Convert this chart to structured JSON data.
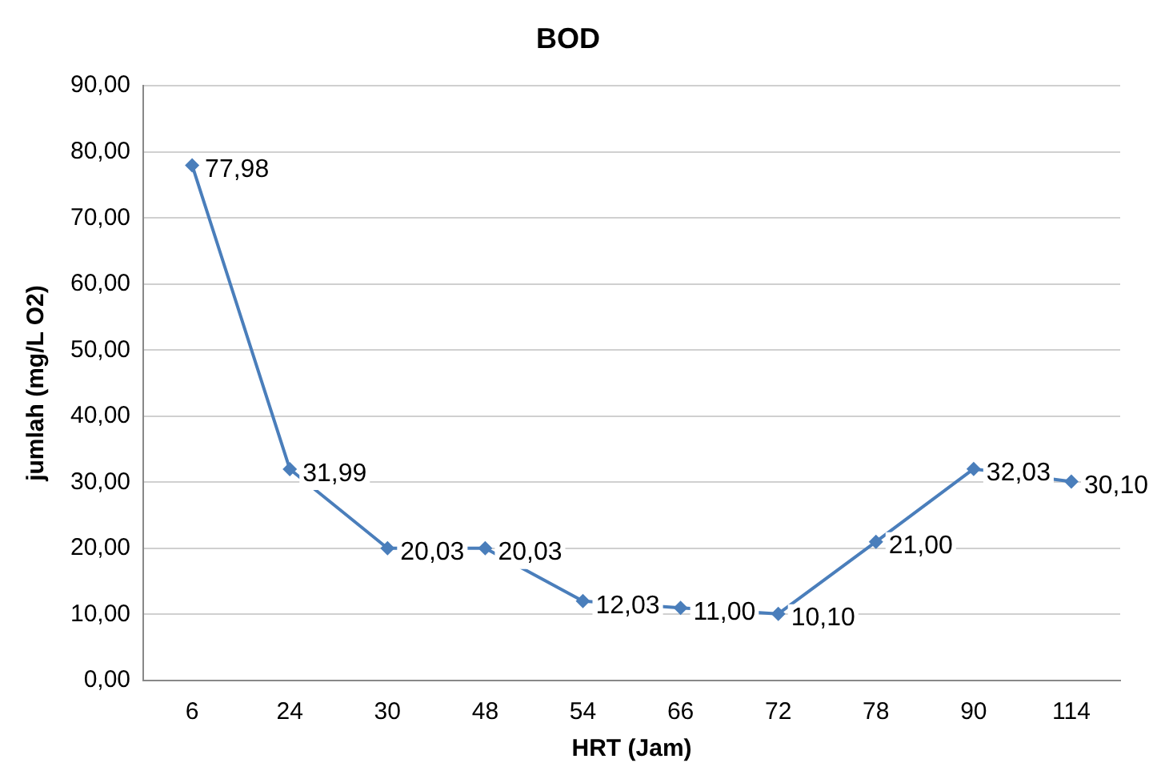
{
  "chart_data": {
    "type": "line",
    "title": "BOD",
    "xlabel": "HRT (Jam)",
    "ylabel": "jumlah (mg/L O2)",
    "categories": [
      "6",
      "24",
      "30",
      "48",
      "54",
      "66",
      "72",
      "78",
      "90",
      "114"
    ],
    "series": [
      {
        "color": "#4a7ebb",
        "values": [
          77.98,
          31.99,
          20.03,
          20.03,
          12.03,
          11.0,
          10.1,
          21.0,
          32.03,
          30.1
        ],
        "value_labels": [
          "77,98",
          "31,99",
          "20,03",
          "20,03",
          "12,03",
          "11,00",
          "10,10",
          "21,00",
          "32,03",
          "30,10"
        ]
      }
    ],
    "ylim": [
      0,
      90
    ],
    "yticks": [
      {
        "value": 0,
        "label": "0,00"
      },
      {
        "value": 10,
        "label": "10,00"
      },
      {
        "value": 20,
        "label": "20,00"
      },
      {
        "value": 30,
        "label": "30,00"
      },
      {
        "value": 40,
        "label": "40,00"
      },
      {
        "value": 50,
        "label": "50,00"
      },
      {
        "value": 60,
        "label": "60,00"
      },
      {
        "value": 70,
        "label": "70,00"
      },
      {
        "value": 80,
        "label": "80,00"
      },
      {
        "value": 90,
        "label": "90,00"
      }
    ],
    "grid": "y",
    "legend": false,
    "marker": "diamond",
    "line_style": "solid"
  }
}
